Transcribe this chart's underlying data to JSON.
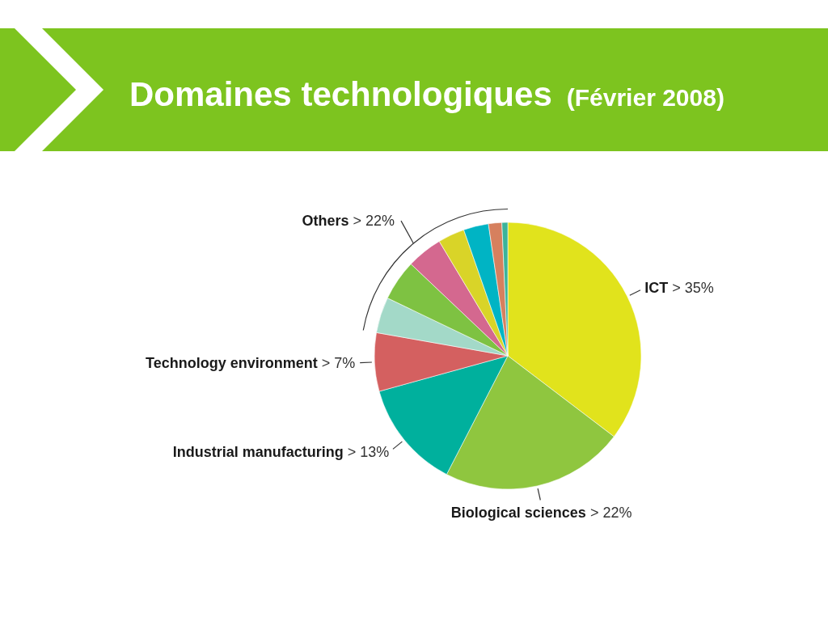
{
  "chart_data": {
    "type": "pie",
    "title": "Domaines technologiques",
    "subtitle": "(Février 2008)",
    "categories": [
      "ICT",
      "Biological sciences",
      "Industrial manufacturing",
      "Technology environment",
      null,
      null,
      null,
      null,
      null,
      null,
      null
    ],
    "values": [
      35,
      22,
      13,
      7,
      4.3,
      4.9,
      4.3,
      3.2,
      3.0,
      1.6,
      0.7
    ],
    "value_labels": [
      "> 35%",
      "> 22%",
      "> 13%",
      "> 7%",
      null,
      null,
      null,
      null,
      null,
      null,
      null
    ],
    "colors": [
      "#e1e31c",
      "#8fc63f",
      "#00b09d",
      "#d46060",
      "#a3d9c8",
      "#7ec242",
      "#d4688f",
      "#d9d428",
      "#00b4c4",
      "#d6805e",
      "#3bb39a"
    ],
    "annotations": [
      "Others > 22%"
    ]
  }
}
